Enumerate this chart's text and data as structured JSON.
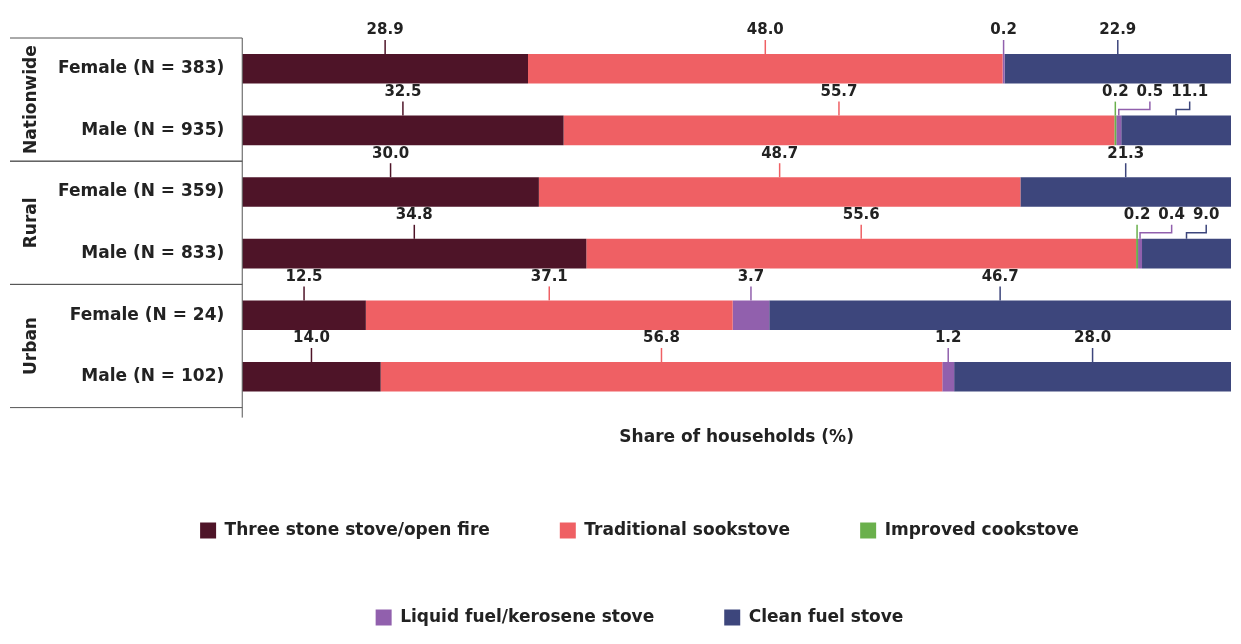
{
  "chart_data": {
    "type": "bar",
    "orientation": "horizontal",
    "stacked": true,
    "xlabel": "Share of households (%)",
    "xlim": [
      0,
      100
    ],
    "tick_labels": "y",
    "legend": "bottom",
    "categories": [
      "Female (N = 383)",
      "Male (N = 935)",
      "Female (N = 359)",
      "Male (N = 833)",
      "Female (N = 24)",
      "Male (N = 102)"
    ],
    "annotations": [
      "Nationwide",
      "Rural",
      "Urban"
    ],
    "series": [
      {
        "name": "Three stone stove/open fire",
        "color": "#4e1428",
        "values": [
          28.9,
          32.5,
          30.0,
          34.8,
          12.5,
          14.0
        ],
        "value_labels": [
          "28.9",
          "32.5",
          "30.0",
          "34.8",
          "12.5",
          "14.0"
        ]
      },
      {
        "name": "Traditional sookstove",
        "color": "#ef6064",
        "values": [
          48.0,
          55.7,
          48.7,
          55.6,
          37.1,
          56.8
        ],
        "value_labels": [
          "48.0",
          "55.7",
          "48.7",
          "55.6",
          "37.1",
          "56.8"
        ]
      },
      {
        "name": "Improved cookstove",
        "color": "#6ab04c",
        "values": [
          null,
          0.2,
          null,
          0.2,
          null,
          null
        ],
        "value_labels": [
          null,
          "0.2",
          null,
          "0.2",
          null,
          null
        ]
      },
      {
        "name": "Liquid fuel/kerosene stove",
        "color": "#9160ad",
        "values": [
          0.2,
          0.5,
          null,
          0.4,
          3.7,
          1.2
        ],
        "value_labels": [
          "0.2",
          "0.5",
          null,
          "0.4",
          "3.7",
          "1.2"
        ]
      },
      {
        "name": "Clean fuel stove",
        "color": "#3d467c",
        "values": [
          22.9,
          11.1,
          21.3,
          9.0,
          46.7,
          28.0
        ],
        "value_labels": [
          "22.9",
          "11.1",
          "21.3",
          "9.0",
          "46.7",
          "28.0"
        ]
      }
    ]
  }
}
